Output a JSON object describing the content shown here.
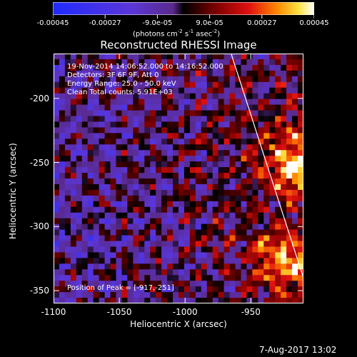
{
  "chart_data": {
    "type": "heatmap",
    "title": "Reconstructed RHESSI Image",
    "xlabel": "Heliocentric X (arcsec)",
    "ylabel": "Heliocentric Y (arcsec)",
    "xlim": [
      -1100,
      -910
    ],
    "ylim": [
      -360,
      -165
    ],
    "xticks": [
      "-1100",
      "-1050",
      "-1000",
      "-950"
    ],
    "xtick_values": [
      -1100,
      -1050,
      -1000,
      -950
    ],
    "yticks": [
      "-200",
      "-250",
      "-300",
      "-350"
    ],
    "ytick_values": [
      -200,
      -250,
      -300,
      -350
    ],
    "colorbar": {
      "range": [
        -0.00045,
        0.00045
      ],
      "ticks": [
        "-0.00045",
        "-0.00027",
        "-9.0e-05",
        "9.0e-05",
        "0.00027",
        "0.00045"
      ],
      "tick_values": [
        -0.00045,
        -0.00027,
        -9e-05,
        9e-05,
        0.00027,
        0.00045
      ],
      "units_line": "(photons cm",
      "units_sup1": "-2",
      "units_mid": " s",
      "units_sup2": "-1",
      "units_mid2": " asec",
      "units_sup3": "-2",
      "units_end": ")"
    },
    "annotations": {
      "time_range": "19-Nov-2014 14:06:52.000 to 14:16:52.000",
      "detectors": "Detectors: 3F 6F 9F, Att 0",
      "energy": "Energy Range: 25.0 - 50.0 keV",
      "clean": "Clean     Total counts: 5.91E+03",
      "peak": "Position of Peak = [-917,-251]"
    },
    "peak": {
      "x": -917,
      "y": -251
    },
    "limb_line": {
      "points": [
        [
          -965,
          -165
        ],
        [
          -910,
          -340
        ]
      ]
    },
    "grid": false,
    "colormap": "rhessi-hot-blue"
  },
  "footer": {
    "timestamp": "7-Aug-2017 13:02"
  }
}
